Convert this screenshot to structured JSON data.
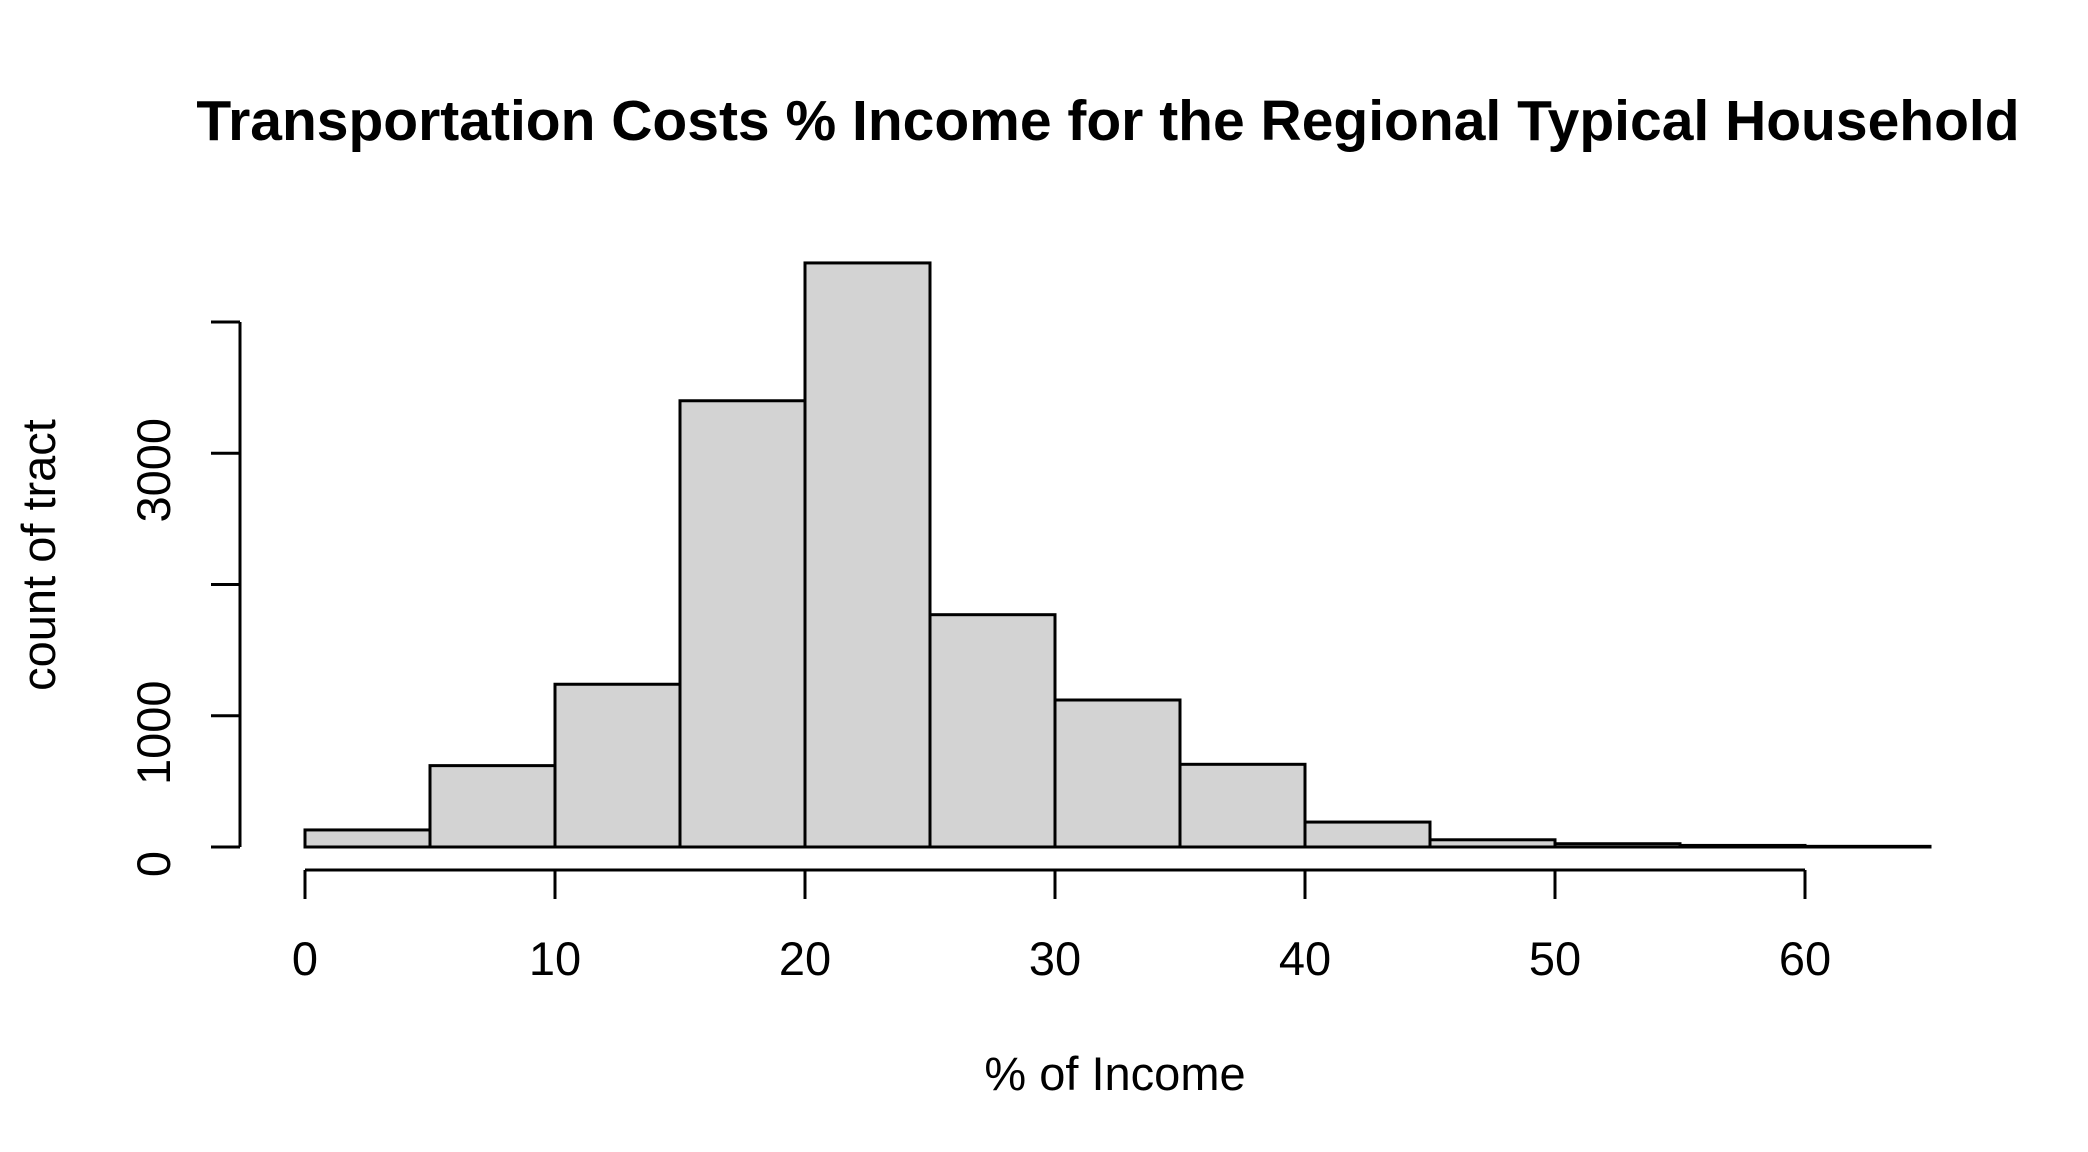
{
  "chart_data": {
    "type": "bar",
    "title": "Transportation Costs % Income for the Regional Typical Household",
    "xlabel": "% of Income",
    "ylabel": "count of tract",
    "bin_edges": [
      0,
      5,
      10,
      15,
      20,
      25,
      30,
      35,
      40,
      45,
      50,
      55,
      60,
      65
    ],
    "values": [
      130,
      620,
      1240,
      3400,
      4450,
      1770,
      1120,
      630,
      190,
      55,
      25,
      12,
      5
    ],
    "xlim": [
      0,
      65
    ],
    "ylim": [
      0,
      4000
    ],
    "x_ticks": [
      0,
      10,
      20,
      30,
      40,
      50,
      60
    ],
    "x_tick_labels": [
      "0",
      "10",
      "20",
      "30",
      "40",
      "50",
      "60"
    ],
    "y_ticks": [
      0,
      1000,
      2000,
      3000,
      4000
    ],
    "y_tick_labels": [
      "0",
      "1000",
      "",
      "3000",
      ""
    ],
    "bar_color": "#d3d3d3",
    "grid": false,
    "legend": "none"
  }
}
